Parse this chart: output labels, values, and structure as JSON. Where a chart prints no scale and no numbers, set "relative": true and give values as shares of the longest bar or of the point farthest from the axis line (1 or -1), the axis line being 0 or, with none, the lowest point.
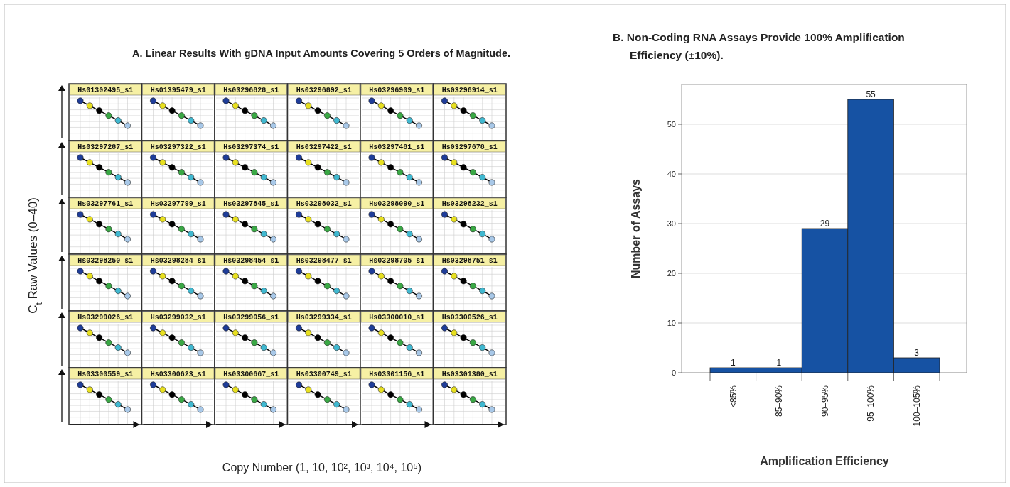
{
  "chart_data": [
    {
      "type": "other",
      "title": "A. Linear Results With gDNA Input Amounts Covering 5 Orders of Magnitude.",
      "xlabel": "Copy Number (1, 10, 10², 10³, 10⁴, 10⁵)",
      "ylabel": "C$_{t}$ Raw Values (0–40)"
    },
    {
      "type": "line",
      "title": "Hs01302495_s1",
      "relative": true,
      "categories": [
        null,
        null,
        null,
        null,
        null,
        null
      ],
      "values": [
        1,
        0.85,
        0.7,
        0.55,
        0.4,
        0.24
      ],
      "colors": [
        "#1f3d99",
        "#e8e020",
        "#000000",
        "#3aa845",
        "#40b8d0",
        "#a8c8e8"
      ],
      "color": "#000000",
      "marker": "circle",
      "grid": true
    },
    {
      "type": "line",
      "title": "Hs01395479_s1",
      "relative": true,
      "categories": [
        null,
        null,
        null,
        null,
        null,
        null
      ],
      "values": [
        1,
        0.85,
        0.7,
        0.55,
        0.4,
        0.24
      ],
      "colors": [
        "#1f3d99",
        "#e8e020",
        "#000000",
        "#3aa845",
        "#40b8d0",
        "#a8c8e8"
      ],
      "color": "#000000",
      "marker": "circle",
      "grid": true
    },
    {
      "type": "line",
      "title": "Hs03296828_s1",
      "relative": true,
      "categories": [
        null,
        null,
        null,
        null,
        null,
        null
      ],
      "values": [
        1,
        0.85,
        0.7,
        0.55,
        0.4,
        0.24
      ],
      "colors": [
        "#1f3d99",
        "#e8e020",
        "#000000",
        "#3aa845",
        "#40b8d0",
        "#a8c8e8"
      ],
      "color": "#000000",
      "marker": "circle",
      "grid": true
    },
    {
      "type": "line",
      "title": "Hs03296892_s1",
      "relative": true,
      "categories": [
        null,
        null,
        null,
        null,
        null,
        null
      ],
      "values": [
        1,
        0.85,
        0.7,
        0.55,
        0.4,
        0.24
      ],
      "colors": [
        "#1f3d99",
        "#e8e020",
        "#000000",
        "#3aa845",
        "#40b8d0",
        "#a8c8e8"
      ],
      "color": "#000000",
      "marker": "circle",
      "grid": true
    },
    {
      "type": "line",
      "title": "Hs03296909_s1",
      "relative": true,
      "categories": [
        null,
        null,
        null,
        null,
        null,
        null
      ],
      "values": [
        1,
        0.85,
        0.7,
        0.55,
        0.4,
        0.24
      ],
      "colors": [
        "#1f3d99",
        "#e8e020",
        "#000000",
        "#3aa845",
        "#40b8d0",
        "#a8c8e8"
      ],
      "color": "#000000",
      "marker": "circle",
      "grid": true
    },
    {
      "type": "line",
      "title": "Hs03296914_s1",
      "relative": true,
      "categories": [
        null,
        null,
        null,
        null,
        null,
        null
      ],
      "values": [
        1,
        0.85,
        0.7,
        0.55,
        0.4,
        0.24
      ],
      "colors": [
        "#1f3d99",
        "#e8e020",
        "#000000",
        "#3aa845",
        "#40b8d0",
        "#a8c8e8"
      ],
      "color": "#000000",
      "marker": "circle",
      "grid": true
    },
    {
      "type": "line",
      "title": "Hs03297287_s1",
      "relative": true,
      "categories": [
        null,
        null,
        null,
        null,
        null,
        null
      ],
      "values": [
        1,
        0.85,
        0.7,
        0.55,
        0.4,
        0.24
      ],
      "colors": [
        "#1f3d99",
        "#e8e020",
        "#000000",
        "#3aa845",
        "#40b8d0",
        "#a8c8e8"
      ],
      "color": "#000000",
      "marker": "circle",
      "grid": true
    },
    {
      "type": "line",
      "title": "Hs03297322_s1",
      "relative": true,
      "categories": [
        null,
        null,
        null,
        null,
        null,
        null
      ],
      "values": [
        1,
        0.85,
        0.7,
        0.55,
        0.4,
        0.24
      ],
      "colors": [
        "#1f3d99",
        "#e8e020",
        "#000000",
        "#3aa845",
        "#40b8d0",
        "#a8c8e8"
      ],
      "color": "#000000",
      "marker": "circle",
      "grid": true
    },
    {
      "type": "line",
      "title": "Hs03297374_s1",
      "relative": true,
      "categories": [
        null,
        null,
        null,
        null,
        null,
        null
      ],
      "values": [
        1,
        0.85,
        0.7,
        0.55,
        0.4,
        0.24
      ],
      "colors": [
        "#1f3d99",
        "#e8e020",
        "#000000",
        "#3aa845",
        "#40b8d0",
        "#a8c8e8"
      ],
      "color": "#000000",
      "marker": "circle",
      "grid": true
    },
    {
      "type": "line",
      "title": "Hs03297422_s1",
      "relative": true,
      "categories": [
        null,
        null,
        null,
        null,
        null,
        null
      ],
      "values": [
        1,
        0.85,
        0.7,
        0.55,
        0.4,
        0.24
      ],
      "colors": [
        "#1f3d99",
        "#e8e020",
        "#000000",
        "#3aa845",
        "#40b8d0",
        "#a8c8e8"
      ],
      "color": "#000000",
      "marker": "circle",
      "grid": true
    },
    {
      "type": "line",
      "title": "Hs03297481_s1",
      "relative": true,
      "categories": [
        null,
        null,
        null,
        null,
        null,
        null
      ],
      "values": [
        1,
        0.85,
        0.7,
        0.55,
        0.4,
        0.24
      ],
      "colors": [
        "#1f3d99",
        "#e8e020",
        "#000000",
        "#3aa845",
        "#40b8d0",
        "#a8c8e8"
      ],
      "color": "#000000",
      "marker": "circle",
      "grid": true
    },
    {
      "type": "line",
      "title": "Hs03297678_s1",
      "relative": true,
      "categories": [
        null,
        null,
        null,
        null,
        null,
        null
      ],
      "values": [
        1,
        0.85,
        0.7,
        0.55,
        0.4,
        0.24
      ],
      "colors": [
        "#1f3d99",
        "#e8e020",
        "#000000",
        "#3aa845",
        "#40b8d0",
        "#a8c8e8"
      ],
      "color": "#000000",
      "marker": "circle",
      "grid": true
    },
    {
      "type": "line",
      "title": "Hs03297761_s1",
      "relative": true,
      "categories": [
        null,
        null,
        null,
        null,
        null,
        null
      ],
      "values": [
        1,
        0.85,
        0.7,
        0.55,
        0.4,
        0.24
      ],
      "colors": [
        "#1f3d99",
        "#e8e020",
        "#000000",
        "#3aa845",
        "#40b8d0",
        "#a8c8e8"
      ],
      "color": "#000000",
      "marker": "circle",
      "grid": true
    },
    {
      "type": "line",
      "title": "Hs03297799_s1",
      "relative": true,
      "categories": [
        null,
        null,
        null,
        null,
        null,
        null
      ],
      "values": [
        1,
        0.85,
        0.7,
        0.55,
        0.4,
        0.24
      ],
      "colors": [
        "#1f3d99",
        "#e8e020",
        "#000000",
        "#3aa845",
        "#40b8d0",
        "#a8c8e8"
      ],
      "color": "#000000",
      "marker": "circle",
      "grid": true
    },
    {
      "type": "line",
      "title": "Hs03297845_s1",
      "relative": true,
      "categories": [
        null,
        null,
        null,
        null,
        null,
        null
      ],
      "values": [
        1,
        0.85,
        0.7,
        0.55,
        0.4,
        0.24
      ],
      "colors": [
        "#1f3d99",
        "#e8e020",
        "#000000",
        "#3aa845",
        "#40b8d0",
        "#a8c8e8"
      ],
      "color": "#000000",
      "marker": "circle",
      "grid": true
    },
    {
      "type": "line",
      "title": "Hs03298032_s1",
      "relative": true,
      "categories": [
        null,
        null,
        null,
        null,
        null,
        null
      ],
      "values": [
        1,
        0.85,
        0.7,
        0.55,
        0.4,
        0.24
      ],
      "colors": [
        "#1f3d99",
        "#e8e020",
        "#000000",
        "#3aa845",
        "#40b8d0",
        "#a8c8e8"
      ],
      "color": "#000000",
      "marker": "circle",
      "grid": true
    },
    {
      "type": "line",
      "title": "Hs03298090_s1",
      "relative": true,
      "categories": [
        null,
        null,
        null,
        null,
        null,
        null
      ],
      "values": [
        1,
        0.85,
        0.7,
        0.55,
        0.4,
        0.24
      ],
      "colors": [
        "#1f3d99",
        "#e8e020",
        "#000000",
        "#3aa845",
        "#40b8d0",
        "#a8c8e8"
      ],
      "color": "#000000",
      "marker": "circle",
      "grid": true
    },
    {
      "type": "line",
      "title": "Hs03298232_s1",
      "relative": true,
      "categories": [
        null,
        null,
        null,
        null,
        null,
        null
      ],
      "values": [
        1,
        0.85,
        0.7,
        0.55,
        0.4,
        0.24
      ],
      "colors": [
        "#1f3d99",
        "#e8e020",
        "#000000",
        "#3aa845",
        "#40b8d0",
        "#a8c8e8"
      ],
      "color": "#000000",
      "marker": "circle",
      "grid": true
    },
    {
      "type": "line",
      "title": "Hs03298250_s1",
      "relative": true,
      "categories": [
        null,
        null,
        null,
        null,
        null,
        null
      ],
      "values": [
        1,
        0.85,
        0.7,
        0.55,
        0.4,
        0.24
      ],
      "colors": [
        "#1f3d99",
        "#e8e020",
        "#000000",
        "#3aa845",
        "#40b8d0",
        "#a8c8e8"
      ],
      "color": "#000000",
      "marker": "circle",
      "grid": true
    },
    {
      "type": "line",
      "title": "Hs03298284_s1",
      "relative": true,
      "categories": [
        null,
        null,
        null,
        null,
        null,
        null
      ],
      "values": [
        1,
        0.85,
        0.7,
        0.55,
        0.4,
        0.24
      ],
      "colors": [
        "#1f3d99",
        "#e8e020",
        "#000000",
        "#3aa845",
        "#40b8d0",
        "#a8c8e8"
      ],
      "color": "#000000",
      "marker": "circle",
      "grid": true
    },
    {
      "type": "line",
      "title": "Hs03298454_s1",
      "relative": true,
      "categories": [
        null,
        null,
        null,
        null,
        null,
        null
      ],
      "values": [
        1,
        0.85,
        0.7,
        0.55,
        0.4,
        0.24
      ],
      "colors": [
        "#1f3d99",
        "#e8e020",
        "#000000",
        "#3aa845",
        "#40b8d0",
        "#a8c8e8"
      ],
      "color": "#000000",
      "marker": "circle",
      "grid": true
    },
    {
      "type": "line",
      "title": "Hs03298477_s1",
      "relative": true,
      "categories": [
        null,
        null,
        null,
        null,
        null,
        null
      ],
      "values": [
        1,
        0.85,
        0.7,
        0.55,
        0.4,
        0.24
      ],
      "colors": [
        "#1f3d99",
        "#e8e020",
        "#000000",
        "#3aa845",
        "#40b8d0",
        "#a8c8e8"
      ],
      "color": "#000000",
      "marker": "circle",
      "grid": true
    },
    {
      "type": "line",
      "title": "Hs03298705_s1",
      "relative": true,
      "categories": [
        null,
        null,
        null,
        null,
        null,
        null
      ],
      "values": [
        1,
        0.85,
        0.7,
        0.55,
        0.4,
        0.24
      ],
      "colors": [
        "#1f3d99",
        "#e8e020",
        "#000000",
        "#3aa845",
        "#40b8d0",
        "#a8c8e8"
      ],
      "color": "#000000",
      "marker": "circle",
      "grid": true
    },
    {
      "type": "line",
      "title": "Hs03298751_s1",
      "relative": true,
      "categories": [
        null,
        null,
        null,
        null,
        null,
        null
      ],
      "values": [
        1,
        0.85,
        0.7,
        0.55,
        0.4,
        0.24
      ],
      "colors": [
        "#1f3d99",
        "#e8e020",
        "#000000",
        "#3aa845",
        "#40b8d0",
        "#a8c8e8"
      ],
      "color": "#000000",
      "marker": "circle",
      "grid": true
    },
    {
      "type": "line",
      "title": "Hs03299026_s1",
      "relative": true,
      "categories": [
        null,
        null,
        null,
        null,
        null,
        null
      ],
      "values": [
        1,
        0.85,
        0.7,
        0.55,
        0.4,
        0.24
      ],
      "colors": [
        "#1f3d99",
        "#e8e020",
        "#000000",
        "#3aa845",
        "#40b8d0",
        "#a8c8e8"
      ],
      "color": "#000000",
      "marker": "circle",
      "grid": true
    },
    {
      "type": "line",
      "title": "Hs03299032_s1",
      "relative": true,
      "categories": [
        null,
        null,
        null,
        null,
        null,
        null
      ],
      "values": [
        1,
        0.85,
        0.7,
        0.55,
        0.4,
        0.24
      ],
      "colors": [
        "#1f3d99",
        "#e8e020",
        "#000000",
        "#3aa845",
        "#40b8d0",
        "#a8c8e8"
      ],
      "color": "#000000",
      "marker": "circle",
      "grid": true
    },
    {
      "type": "line",
      "title": "Hs03299056_s1",
      "relative": true,
      "categories": [
        null,
        null,
        null,
        null,
        null,
        null
      ],
      "values": [
        1,
        0.85,
        0.7,
        0.55,
        0.4,
        0.24
      ],
      "colors": [
        "#1f3d99",
        "#e8e020",
        "#000000",
        "#3aa845",
        "#40b8d0",
        "#a8c8e8"
      ],
      "color": "#000000",
      "marker": "circle",
      "grid": true
    },
    {
      "type": "line",
      "title": "Hs03299334_s1",
      "relative": true,
      "categories": [
        null,
        null,
        null,
        null,
        null,
        null
      ],
      "values": [
        1,
        0.85,
        0.7,
        0.55,
        0.4,
        0.24
      ],
      "colors": [
        "#1f3d99",
        "#e8e020",
        "#000000",
        "#3aa845",
        "#40b8d0",
        "#a8c8e8"
      ],
      "color": "#000000",
      "marker": "circle",
      "grid": true
    },
    {
      "type": "line",
      "title": "Hs03300010_s1",
      "relative": true,
      "categories": [
        null,
        null,
        null,
        null,
        null,
        null
      ],
      "values": [
        1,
        0.85,
        0.7,
        0.55,
        0.4,
        0.24
      ],
      "colors": [
        "#1f3d99",
        "#e8e020",
        "#000000",
        "#3aa845",
        "#40b8d0",
        "#a8c8e8"
      ],
      "color": "#000000",
      "marker": "circle",
      "grid": true
    },
    {
      "type": "line",
      "title": "Hs03300526_s1",
      "relative": true,
      "categories": [
        null,
        null,
        null,
        null,
        null,
        null
      ],
      "values": [
        1,
        0.85,
        0.7,
        0.55,
        0.4,
        0.24
      ],
      "colors": [
        "#1f3d99",
        "#e8e020",
        "#000000",
        "#3aa845",
        "#40b8d0",
        "#a8c8e8"
      ],
      "color": "#000000",
      "marker": "circle",
      "grid": true
    },
    {
      "type": "line",
      "title": "Hs03300559_s1",
      "relative": true,
      "categories": [
        null,
        null,
        null,
        null,
        null,
        null
      ],
      "values": [
        1,
        0.85,
        0.7,
        0.55,
        0.4,
        0.24
      ],
      "colors": [
        "#1f3d99",
        "#e8e020",
        "#000000",
        "#3aa845",
        "#40b8d0",
        "#a8c8e8"
      ],
      "color": "#000000",
      "marker": "circle",
      "grid": true
    },
    {
      "type": "line",
      "title": "Hs03300623_s1",
      "relative": true,
      "categories": [
        null,
        null,
        null,
        null,
        null,
        null
      ],
      "values": [
        1,
        0.85,
        0.7,
        0.55,
        0.4,
        0.24
      ],
      "colors": [
        "#1f3d99",
        "#e8e020",
        "#000000",
        "#3aa845",
        "#40b8d0",
        "#a8c8e8"
      ],
      "color": "#000000",
      "marker": "circle",
      "grid": true
    },
    {
      "type": "line",
      "title": "Hs03300667_s1",
      "relative": true,
      "categories": [
        null,
        null,
        null,
        null,
        null,
        null
      ],
      "values": [
        1,
        0.85,
        0.7,
        0.55,
        0.4,
        0.24
      ],
      "colors": [
        "#1f3d99",
        "#e8e020",
        "#000000",
        "#3aa845",
        "#40b8d0",
        "#a8c8e8"
      ],
      "color": "#000000",
      "marker": "circle",
      "grid": true
    },
    {
      "type": "line",
      "title": "Hs03300749_s1",
      "relative": true,
      "categories": [
        null,
        null,
        null,
        null,
        null,
        null
      ],
      "values": [
        1,
        0.85,
        0.7,
        0.55,
        0.4,
        0.24
      ],
      "colors": [
        "#1f3d99",
        "#e8e020",
        "#000000",
        "#3aa845",
        "#40b8d0",
        "#a8c8e8"
      ],
      "color": "#000000",
      "marker": "circle",
      "grid": true
    },
    {
      "type": "line",
      "title": "Hs03301156_s1",
      "relative": true,
      "categories": [
        null,
        null,
        null,
        null,
        null,
        null
      ],
      "values": [
        1,
        0.85,
        0.7,
        0.55,
        0.4,
        0.24
      ],
      "colors": [
        "#1f3d99",
        "#e8e020",
        "#000000",
        "#3aa845",
        "#40b8d0",
        "#a8c8e8"
      ],
      "color": "#000000",
      "marker": "circle",
      "grid": true
    },
    {
      "type": "line",
      "title": "Hs03301380_s1",
      "relative": true,
      "categories": [
        null,
        null,
        null,
        null,
        null,
        null
      ],
      "values": [
        1,
        0.85,
        0.7,
        0.55,
        0.4,
        0.24
      ],
      "colors": [
        "#1f3d99",
        "#e8e020",
        "#000000",
        "#3aa845",
        "#40b8d0",
        "#a8c8e8"
      ],
      "color": "#000000",
      "marker": "circle",
      "grid": true
    },
    {
      "type": "bar",
      "title": "B. Non-Coding RNA Assays Provide 100% Amplification Efficiency (±10%).",
      "xlabel": "Amplification Efficiency",
      "ylabel": "Number of Assays",
      "categories": [
        "<85%",
        "85–90%",
        "90–95%",
        "95–100%",
        "100–105%"
      ],
      "values": [
        1,
        1,
        29,
        55,
        3
      ],
      "color": "#1652a3",
      "ylim": [
        0,
        58
      ],
      "yticks": [
        0,
        10,
        20,
        30,
        40,
        50
      ],
      "grid": "y",
      "data_labels": true
    }
  ]
}
